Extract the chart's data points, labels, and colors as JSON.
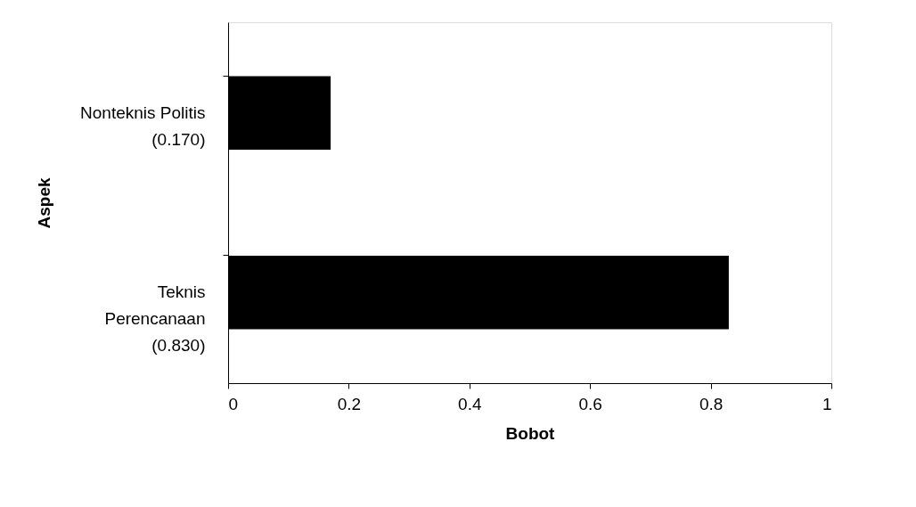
{
  "chart_data": {
    "type": "bar",
    "orientation": "horizontal",
    "xlabel": "Bobot",
    "ylabel": "Aspek",
    "categories": [
      "Nonteknis Politis\n(0.170)",
      "Teknis\nPerencanaan\n(0.830)"
    ],
    "values": [
      0.17,
      0.83
    ],
    "color": "#000000",
    "xlim": [
      0,
      1
    ],
    "xticks": [
      0,
      0.2,
      0.4,
      0.6,
      0.8,
      1
    ],
    "grid": false
  }
}
